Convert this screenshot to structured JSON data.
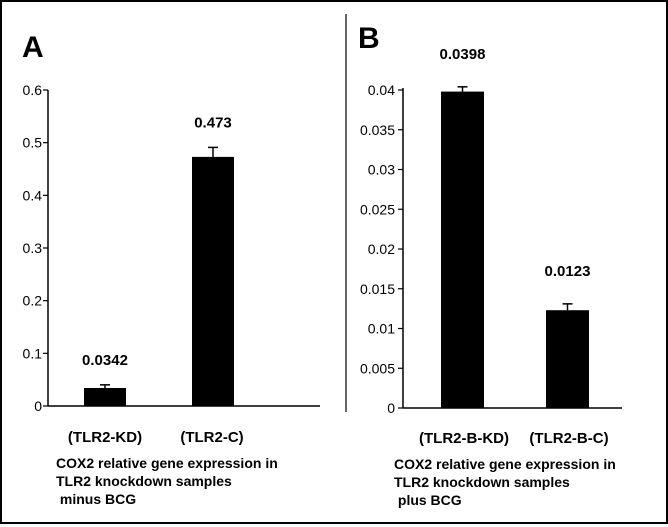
{
  "chart_data": [
    {
      "type": "bar",
      "panel": "A",
      "categories": [
        "(TLR2-KD)",
        "(TLR2-C)"
      ],
      "values": [
        0.0342,
        0.473
      ],
      "errors": [
        0.006,
        0.018
      ],
      "data_labels": [
        "0.0342",
        "0.473"
      ],
      "yticks": [
        "0",
        "0.1",
        "0.2",
        "0.3",
        "0.4",
        "0.5",
        "0.6"
      ],
      "ylim": [
        0,
        0.6
      ],
      "caption": [
        "COX2 relative gene expression in",
        "TLR2 knockdown samples",
        " minus BCG"
      ],
      "bar_color": "#000000"
    },
    {
      "type": "bar",
      "panel": "B",
      "categories": [
        "(TLR2-B-KD)",
        "(TLR2-B-C)"
      ],
      "values": [
        0.0398,
        0.0123
      ],
      "errors": [
        0.0006,
        0.0008
      ],
      "data_labels": [
        "0.0398",
        "0.0123"
      ],
      "yticks": [
        "0",
        "0.005",
        "0.01",
        "0.015",
        "0.02",
        "0.025",
        "0.03",
        "0.035",
        "0.04"
      ],
      "ylim": [
        0,
        0.04
      ],
      "caption": [
        "COX2 relative gene expression in",
        "TLR2 knockdown samples",
        " plus BCG"
      ],
      "bar_color": "#000000"
    }
  ]
}
